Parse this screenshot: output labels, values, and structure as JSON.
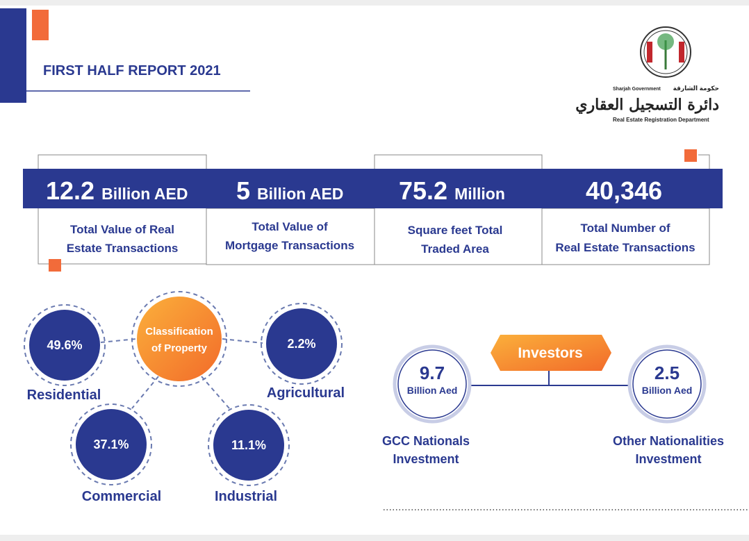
{
  "header": {
    "title": "FIRST HALF REPORT 2021"
  },
  "logo": {
    "arabic_government": "حكومة الشارقة",
    "government": "Sharjah Government",
    "arabic_department": "دائرة التسجيل العقاري",
    "department": "Real Estate Registration Department"
  },
  "stats": [
    {
      "value": "12.2",
      "unit": "Billion AED",
      "label_lines": [
        "Total Value of Real",
        "Estate Transactions"
      ]
    },
    {
      "value": "5",
      "unit": "Billion AED",
      "label_lines": [
        "Total Value of",
        "Mortgage Transactions"
      ]
    },
    {
      "value": "75.2",
      "unit": "Million",
      "label_lines": [
        "Square feet Total",
        "Traded Area"
      ]
    },
    {
      "value": "40,346",
      "label_lines": [
        "Total Number of",
        "Real Estate Transactions"
      ]
    }
  ],
  "classification": {
    "title_lines": [
      "Classification",
      "of Property"
    ],
    "items": [
      {
        "value": "49.6%",
        "label": "Residential"
      },
      {
        "value": "2.2%",
        "label": "Agricultural"
      },
      {
        "value": "37.1%",
        "label": "Commercial"
      },
      {
        "value": "11.1%",
        "label": "Industrial"
      }
    ]
  },
  "investors": {
    "title": "Investors",
    "items": [
      {
        "value": "9.7",
        "unit": "Billion Aed",
        "label_lines": [
          "GCC Nationals",
          "Investment"
        ]
      },
      {
        "value": "2.5",
        "unit": "Billion Aed",
        "label_lines": [
          "Other Nationalities",
          "Investment"
        ]
      }
    ]
  }
}
